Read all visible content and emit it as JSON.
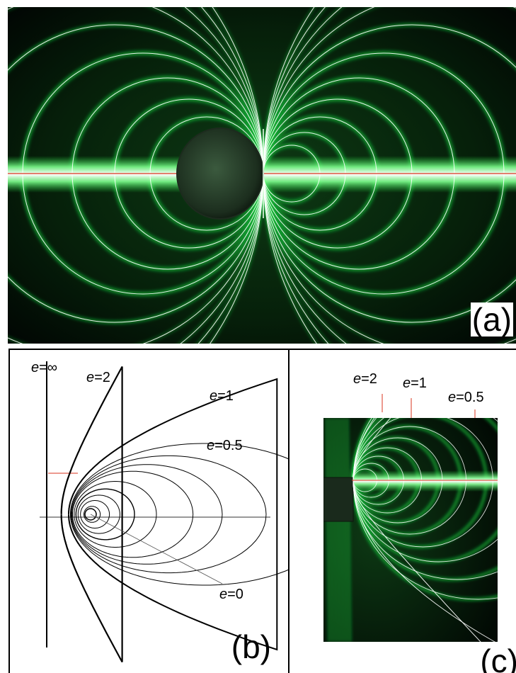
{
  "panels": {
    "a": {
      "label": "(a)"
    },
    "b": {
      "label": "(b)",
      "curves": [
        {
          "symbol": "e",
          "value": "=∞"
        },
        {
          "symbol": "e",
          "value": "=2"
        },
        {
          "symbol": "e",
          "value": "=1"
        },
        {
          "symbol": "e",
          "value": "=0.5"
        },
        {
          "symbol": "e",
          "value": "=0"
        }
      ]
    },
    "c": {
      "label": "(c)",
      "curves": [
        {
          "symbol": "e",
          "value": "=2"
        },
        {
          "symbol": "e",
          "value": "=1"
        },
        {
          "symbol": "e",
          "value": "=0.5"
        }
      ]
    }
  },
  "colors": {
    "field_green": "#18d640",
    "glow_white": "#f2fff4",
    "axis_red": "#d9341f",
    "overlay_white": "#ffffff",
    "background_dark": "#020a04"
  }
}
